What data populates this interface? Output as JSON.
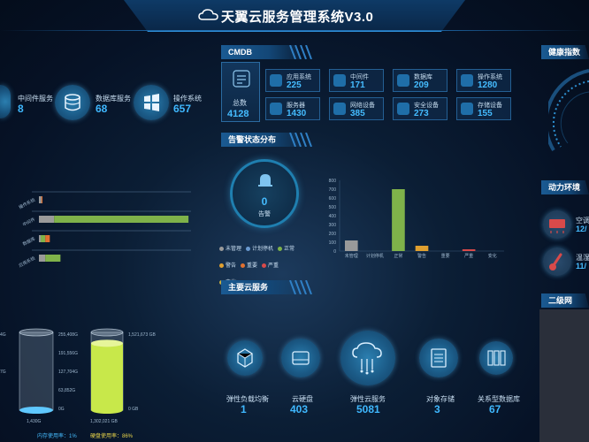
{
  "header": {
    "title": "天翼云服务管理系统V3.0"
  },
  "top_services": [
    {
      "label": "中间件服务",
      "value": "8"
    },
    {
      "label": "数据库服务",
      "value": "68"
    },
    {
      "label": "操作系统",
      "value": "657"
    }
  ],
  "cmdb": {
    "title": "CMDB",
    "total_label": "总数",
    "total_value": "4128",
    "items": [
      {
        "name": "应用系统",
        "value": "225"
      },
      {
        "name": "中间件",
        "value": "171"
      },
      {
        "name": "数据库",
        "value": "209"
      },
      {
        "name": "操作系统",
        "value": "1280"
      },
      {
        "name": "服务器",
        "value": "1430"
      },
      {
        "name": "网络设备",
        "value": "385"
      },
      {
        "name": "安全设备",
        "value": "273"
      },
      {
        "name": "存储设备",
        "value": "155"
      }
    ]
  },
  "alerts": {
    "title": "告警状态分布",
    "ring_value": "0",
    "ring_label": "告警",
    "legend": [
      {
        "name": "未管理",
        "color": "#9a9a9a"
      },
      {
        "name": "计划停机",
        "color": "#6a9ad0"
      },
      {
        "name": "正常",
        "color": "#7fb24a"
      },
      {
        "name": "警告",
        "color": "#e0a030"
      },
      {
        "name": "重要",
        "color": "#e07030"
      },
      {
        "name": "严重",
        "color": "#d84a4a"
      },
      {
        "name": "变化",
        "color": "#c8b040"
      }
    ]
  },
  "chart_data": [
    {
      "type": "bar",
      "title": "",
      "categories": [
        "未管理",
        "计划停机",
        "正常",
        "警告",
        "重要",
        "严重",
        "变化"
      ],
      "values": [
        120,
        0,
        700,
        60,
        0,
        20,
        0
      ],
      "colors": [
        "#9a9a9a",
        "#6a9ad0",
        "#7fb24a",
        "#e0a030",
        "#e07030",
        "#d84a4a",
        "#c8b040"
      ],
      "yticks": [
        "800",
        "700",
        "600",
        "500",
        "400",
        "300",
        "200",
        "100",
        "0"
      ],
      "ylim": [
        0,
        800
      ]
    },
    {
      "type": "bar",
      "orientation": "horizontal",
      "stacked": true,
      "categories": [
        "操作系统",
        "中间件",
        "数据库",
        "应用系统"
      ],
      "series": [
        {
          "values": [
            10,
            60,
            7,
            25
          ],
          "color": "#9a9a9a"
        },
        {
          "values": [
            0,
            530,
            18,
            60
          ],
          "color": "#7fb24a"
        },
        {
          "values": [
            0,
            0,
            0,
            0
          ],
          "color": "#e0a030"
        },
        {
          "values": [
            4,
            0,
            18,
            0
          ],
          "color": "#e07030"
        },
        {
          "values": [
            0,
            0,
            0,
            0
          ],
          "color": "#d84a4a"
        }
      ],
      "xlim": [
        0,
        600
      ]
    }
  ],
  "storage": {
    "memory": {
      "ticks": [
        "255,408G",
        "191,556G",
        "127,704G",
        "63,852G",
        "0G"
      ],
      "fill_fraction": 0.01,
      "total": "1,430G",
      "usage_label": "内存使用率：1%",
      "left_ticks": [
        "4G",
        "7G"
      ]
    },
    "disk": {
      "top_value": "1,521,673 GB",
      "bottom_tick": "0 GB",
      "fill_fraction": 0.86,
      "total": "1,302,021 GB",
      "usage_label": "硬盘使用率：86%"
    }
  },
  "cloud_services": {
    "title": "主要云服务",
    "items": [
      {
        "name": "弹性负载均衡",
        "value": "1"
      },
      {
        "name": "云硬盘",
        "value": "403"
      },
      {
        "name": "弹性云服务",
        "value": "5081"
      },
      {
        "name": "对象存储",
        "value": "3"
      },
      {
        "name": "关系型数据库",
        "value": "67"
      }
    ]
  },
  "right_panel": {
    "health_title": "健康指数",
    "env_title": "动力环境",
    "env_items": [
      {
        "name": "空调",
        "value": "12/"
      },
      {
        "name": "温湿",
        "value": "11/"
      }
    ],
    "l2_title": "二级网"
  }
}
